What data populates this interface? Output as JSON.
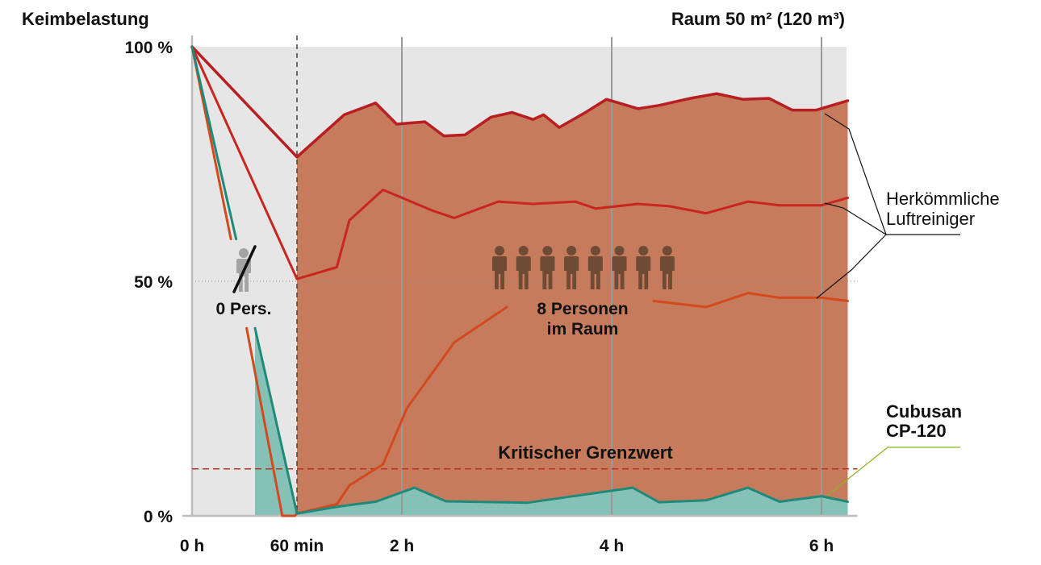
{
  "chart_data": {
    "type": "line",
    "title_left": "Keimbelastung",
    "title_right": "Raum 50 m² (120 m³)",
    "y_ticks": [
      {
        "value": 100,
        "label": "100 %"
      },
      {
        "value": 50,
        "label": "50 %"
      },
      {
        "value": 0,
        "label": "0 %"
      }
    ],
    "x_ticks": [
      {
        "value": 0,
        "label": "0 h"
      },
      {
        "value": 1,
        "label": "60 min"
      },
      {
        "value": 2,
        "label": "2 h"
      },
      {
        "value": 4,
        "label": "4 h"
      },
      {
        "value": 6,
        "label": "6 h"
      }
    ],
    "x_unit": "h",
    "xlim": [
      0,
      6.25
    ],
    "ylim": [
      0,
      100
    ],
    "annotations": {
      "no_persons": "0 Pers.",
      "persons_line1": "8 Personen",
      "persons_line2": "im Raum",
      "persons_count": 8,
      "threshold_label": "Kritischer Grenzwert",
      "threshold_value": 10,
      "conventional_line1": "Herkömmliche",
      "conventional_line2": "Luftreiniger",
      "cubusan_line1": "Cubusan",
      "cubusan_line2": "CP-120"
    },
    "series": [
      {
        "group": "conventional",
        "color": "#b71f22",
        "points": [
          [
            0,
            100
          ],
          [
            1,
            76.5
          ],
          [
            1.45,
            85.5
          ],
          [
            1.75,
            88
          ],
          [
            1.95,
            83.5
          ],
          [
            2.22,
            84
          ],
          [
            2.4,
            81
          ],
          [
            2.6,
            81.2
          ],
          [
            2.85,
            85
          ],
          [
            3.05,
            86
          ],
          [
            3.25,
            84.5
          ],
          [
            3.35,
            85.5
          ],
          [
            3.5,
            82.8
          ],
          [
            3.75,
            86
          ],
          [
            3.95,
            88.8
          ],
          [
            4.25,
            86.8
          ],
          [
            4.45,
            87.5
          ],
          [
            4.75,
            89
          ],
          [
            5,
            90
          ],
          [
            5.25,
            88.8
          ],
          [
            5.5,
            89
          ],
          [
            5.72,
            86.5
          ],
          [
            5.95,
            86.5
          ],
          [
            6.25,
            88.5
          ]
        ]
      },
      {
        "group": "conventional",
        "color": "#c8261f",
        "points": [
          [
            0,
            100
          ],
          [
            1,
            50.5
          ],
          [
            1.38,
            53
          ],
          [
            1.5,
            63
          ],
          [
            1.82,
            69.5
          ],
          [
            2.3,
            65
          ],
          [
            2.5,
            63.5
          ],
          [
            2.92,
            67
          ],
          [
            3.25,
            66.5
          ],
          [
            3.65,
            67
          ],
          [
            3.85,
            65.5
          ],
          [
            4.25,
            66.5
          ],
          [
            4.55,
            66
          ],
          [
            4.9,
            64.5
          ],
          [
            5.3,
            67
          ],
          [
            5.6,
            66.2
          ],
          [
            6,
            66.2
          ],
          [
            6.25,
            67.8
          ]
        ]
      },
      {
        "group": "conventional",
        "color": "#d24a1e",
        "segments": [
          [
            [
              0,
              100
            ],
            [
              0.37,
              59
            ]
          ],
          [
            [
              0.52,
              40
            ],
            [
              0.86,
              0
            ],
            [
              0.98,
              0
            ],
            [
              1,
              0.5
            ],
            [
              1.38,
              2.5
            ],
            [
              1.5,
              6.5
            ],
            [
              1.82,
              11
            ],
            [
              2.05,
              23
            ],
            [
              2.5,
              37
            ],
            [
              3,
              44.5
            ]
          ],
          [
            [
              4.4,
              45.8
            ],
            [
              4.9,
              44.5
            ],
            [
              5.3,
              47.5
            ],
            [
              5.6,
              46.5
            ],
            [
              6,
              46.5
            ],
            [
              6.25,
              45.8
            ]
          ]
        ]
      },
      {
        "group": "cubusan",
        "color": "#1f8a7a",
        "fill": "#86c1b8",
        "segments": [
          [
            [
              0,
              100
            ],
            [
              0.42,
              59
            ]
          ],
          [
            [
              0.6,
              40
            ],
            [
              1,
              0.5
            ],
            [
              1.4,
              2
            ],
            [
              1.75,
              3
            ],
            [
              2.12,
              6
            ],
            [
              2.42,
              3.1
            ],
            [
              3.2,
              2.8
            ],
            [
              4.2,
              6
            ],
            [
              4.45,
              2.9
            ],
            [
              4.9,
              3.3
            ],
            [
              5.3,
              6
            ],
            [
              5.6,
              3
            ],
            [
              6,
              4.2
            ],
            [
              6.25,
              3
            ]
          ]
        ]
      }
    ],
    "colors": {
      "conventional_fill": "#c67b5c",
      "background_pre": "#e6e6e6",
      "threshold": "#c0301f",
      "cubusan_label": "#8db321",
      "axis": "#bdbdbd"
    }
  }
}
